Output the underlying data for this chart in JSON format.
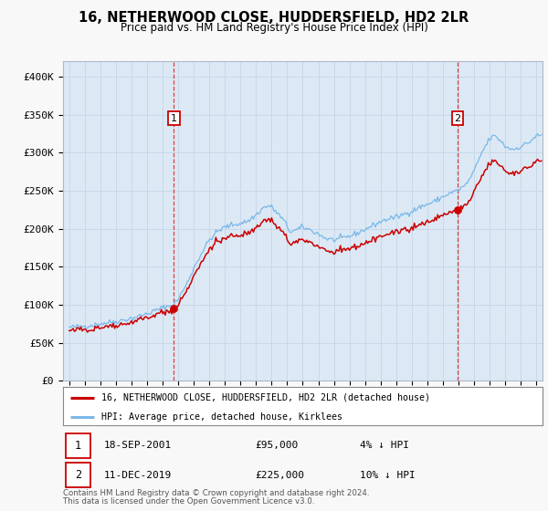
{
  "title": "16, NETHERWOOD CLOSE, HUDDERSFIELD, HD2 2LR",
  "subtitle": "Price paid vs. HM Land Registry's House Price Index (HPI)",
  "background_color": "#f8f8f8",
  "plot_bg_color": "#dce9f5",
  "hpi_color": "#7ab8e8",
  "price_color": "#cc0000",
  "grid_color": "#c8d8e8",
  "ylim": [
    0,
    420000
  ],
  "yticks": [
    0,
    50000,
    100000,
    150000,
    200000,
    250000,
    300000,
    350000,
    400000
  ],
  "xlim_start": 1994.6,
  "xlim_end": 2025.4,
  "sale1_date_label": "18-SEP-2001",
  "sale1_price": 95000,
  "sale1_price_label": "£95,000",
  "sale1_hpi_diff": "4% ↓ HPI",
  "sale1_year": 2001.72,
  "sale2_date_label": "11-DEC-2019",
  "sale2_price": 225000,
  "sale2_price_label": "£225,000",
  "sale2_hpi_diff": "10% ↓ HPI",
  "sale2_year": 2019.95,
  "legend_label_price": "16, NETHERWOOD CLOSE, HUDDERSFIELD, HD2 2LR (detached house)",
  "legend_label_hpi": "HPI: Average price, detached house, Kirklees",
  "footer1": "Contains HM Land Registry data © Crown copyright and database right 2024.",
  "footer2": "This data is licensed under the Open Government Licence v3.0."
}
